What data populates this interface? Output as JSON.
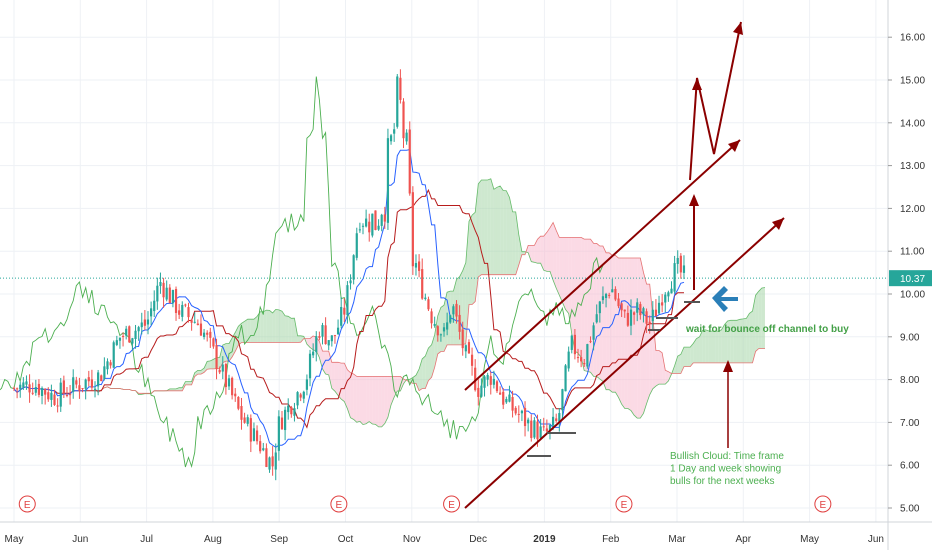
{
  "chart_data": {
    "type": "candlestick",
    "y_axis": {
      "ticks": [
        "5.00",
        "6.00",
        "7.00",
        "8.00",
        "9.00",
        "10.00",
        "11.00",
        "12.00",
        "13.00",
        "14.00",
        "15.00",
        "16.00"
      ],
      "range": [
        4.8,
        16.5
      ],
      "current_price_label": "10.37",
      "current_price": 10.37
    },
    "x_axis": {
      "ticks": [
        {
          "label": "May",
          "bold": false
        },
        {
          "label": "Jun",
          "bold": false
        },
        {
          "label": "Jul",
          "bold": false
        },
        {
          "label": "Aug",
          "bold": false
        },
        {
          "label": "Sep",
          "bold": false
        },
        {
          "label": "Oct",
          "bold": false
        },
        {
          "label": "Nov",
          "bold": false
        },
        {
          "label": "Dec",
          "bold": false
        },
        {
          "label": "2019",
          "bold": true
        },
        {
          "label": "Feb",
          "bold": false
        },
        {
          "label": "Mar",
          "bold": false
        },
        {
          "label": "Apr",
          "bold": false
        },
        {
          "label": "May",
          "bold": false
        },
        {
          "label": "Jun",
          "bold": false
        }
      ]
    },
    "price_path": [
      [
        0,
        7.8
      ],
      [
        0.3,
        7.9
      ],
      [
        0.6,
        7.6
      ],
      [
        1.0,
        7.9
      ],
      [
        1.3,
        8.1
      ],
      [
        1.6,
        9.0
      ],
      [
        2.0,
        9.3
      ],
      [
        2.2,
        10.3
      ],
      [
        2.5,
        9.6
      ],
      [
        2.8,
        9.3
      ],
      [
        3.1,
        8.3
      ],
      [
        3.4,
        7.2
      ],
      [
        3.7,
        6.5
      ],
      [
        3.9,
        6.0
      ],
      [
        4.0,
        7.0
      ],
      [
        4.2,
        7.5
      ],
      [
        4.4,
        8.0
      ],
      [
        4.6,
        9.2
      ],
      [
        4.8,
        8.9
      ],
      [
        5.0,
        9.7
      ],
      [
        5.2,
        11.8
      ],
      [
        5.4,
        11.6
      ],
      [
        5.6,
        12.5
      ],
      [
        5.8,
        14.5
      ],
      [
        5.9,
        13.6
      ],
      [
        6.0,
        11.0
      ],
      [
        6.1,
        10.4
      ],
      [
        6.3,
        9.5
      ],
      [
        6.5,
        9.0
      ],
      [
        6.6,
        9.8
      ],
      [
        6.8,
        8.6
      ],
      [
        7.0,
        7.8
      ],
      [
        7.2,
        8.1
      ],
      [
        7.4,
        7.5
      ],
      [
        7.6,
        7.2
      ],
      [
        7.8,
        6.9
      ],
      [
        8.0,
        6.7
      ],
      [
        8.2,
        7.0
      ],
      [
        8.4,
        8.8
      ],
      [
        8.6,
        8.5
      ],
      [
        8.8,
        9.6
      ],
      [
        9.0,
        10.2
      ],
      [
        9.2,
        9.4
      ],
      [
        9.4,
        9.6
      ],
      [
        9.6,
        9.3
      ],
      [
        9.8,
        10.1
      ],
      [
        10.0,
        10.6
      ],
      [
        10.1,
        10.4
      ],
      [
        10.15,
        10.37
      ]
    ],
    "earnings_markers": [
      0.2,
      4.9,
      6.6,
      9.2,
      12.2
    ],
    "earnings_label": "E",
    "annotations": {
      "bounce_text": "wait for bounce off channel to buy",
      "cloud_text_lines": [
        "Bullish Cloud: Time frame",
        "1 Day and week showing",
        "bulls for the next weeks"
      ]
    }
  },
  "colors": {
    "up": "#26a69a",
    "down": "#ef5350",
    "conversion_line": "#2962ff",
    "base_line": "#b71c1c",
    "lagging_span": "#4caf50",
    "cloud_bull": "#a5d6a7",
    "cloud_bear": "#f8bbd0",
    "drawing": "#8b0000",
    "arrow_blue": "#2a7fb8",
    "price_line": "#26a69a"
  }
}
